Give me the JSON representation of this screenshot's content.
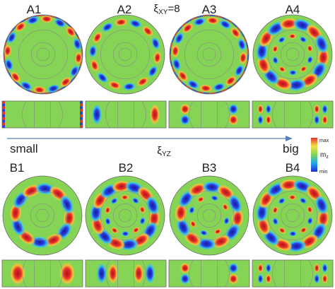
{
  "header": {
    "panel_labels_a": [
      "A1",
      "A2",
      "A3",
      "A4"
    ],
    "panel_labels_b": [
      "B1",
      "B2",
      "B3",
      "B4"
    ],
    "xi_xy_symbol": "ξ",
    "xi_xy_subscript": "XY",
    "xi_xy_value": "=8"
  },
  "axis": {
    "left_label": "small",
    "right_label": "big",
    "xi_yz_symbol": "ξ",
    "xi_yz_subscript": "YZ"
  },
  "colorbar": {
    "max_label": "max",
    "min_label": "min",
    "quantity_symbol": "m",
    "quantity_subscript": "z",
    "colors": [
      "#1f2bd6",
      "#1ea7e8",
      "#7fd35a",
      "#f2e34a",
      "#e8322a"
    ]
  },
  "rows": {
    "A": [
      {
        "ring_radius": 0.9,
        "lobes": 16,
        "inner": false,
        "edge_strip": true
      },
      {
        "ring_radius": 0.82,
        "lobes": 14,
        "inner": false,
        "edge_strip": false
      },
      {
        "ring_radius": 0.86,
        "lobes": 16,
        "inner": false,
        "edge_strip": true
      },
      {
        "ring_radius": 0.78,
        "lobes": 14,
        "inner": true,
        "edge_strip": false
      }
    ],
    "B": [
      {
        "ring_radius": 0.68,
        "lobes": 12,
        "inner": false
      },
      {
        "ring_radius": 0.74,
        "lobes": 14,
        "inner": true
      },
      {
        "ring_radius": 0.72,
        "lobes": 12,
        "inner": true
      },
      {
        "ring_radius": 0.78,
        "lobes": 14,
        "inner": true
      }
    ]
  }
}
